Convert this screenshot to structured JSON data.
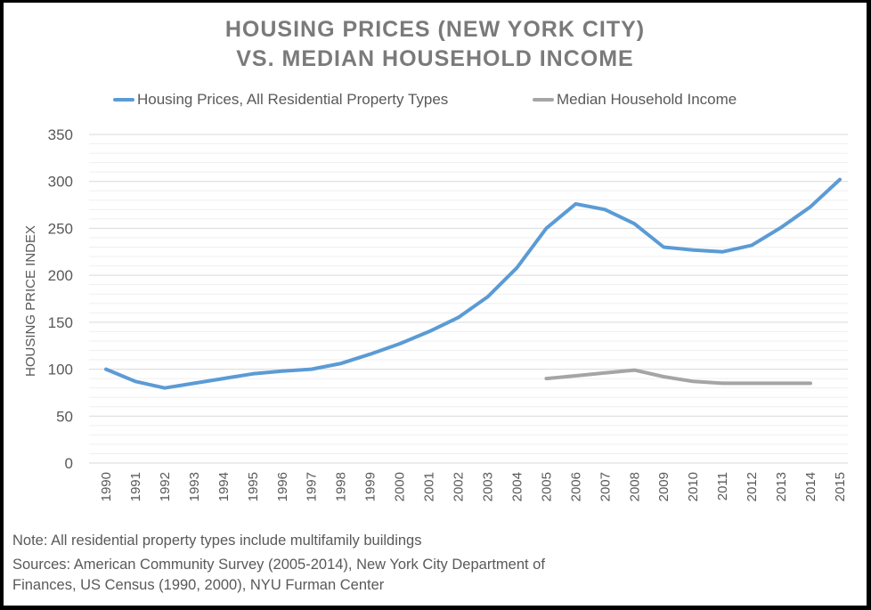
{
  "chart_data": {
    "type": "line",
    "title": "HOUSING PRICES (NEW YORK CITY) VS. MEDIAN HOUSEHOLD INCOME",
    "title_lines": [
      "HOUSING PRICES (NEW YORK CITY)",
      "VS. MEDIAN HOUSEHOLD INCOME"
    ],
    "xlabel": "",
    "ylabel": "HOUSING PRICE INDEX",
    "ylim": [
      0,
      350
    ],
    "yticks": [
      0,
      50,
      100,
      150,
      200,
      250,
      300,
      350
    ],
    "minor_grid_step": 10,
    "grid": true,
    "legend_position": "top",
    "x": [
      "1990",
      "1991",
      "1992",
      "1993",
      "1994",
      "1995",
      "1996",
      "1997",
      "1998",
      "1999",
      "2000",
      "2001",
      "2002",
      "2003",
      "2004",
      "2005",
      "2006",
      "2007",
      "2008",
      "2009",
      "2010",
      "2011",
      "2012",
      "2013",
      "2014",
      "2015"
    ],
    "series": [
      {
        "name": "Housing Prices, All Residential Property Types",
        "color": "#5b9bd5",
        "values": [
          100,
          87,
          80,
          85,
          90,
          95,
          98,
          100,
          106,
          116,
          127,
          140,
          155,
          177,
          208,
          250,
          276,
          270,
          255,
          230,
          227,
          225,
          232,
          251,
          273,
          302
        ]
      },
      {
        "name": "Median Household Income",
        "color": "#a5a5a5",
        "values": [
          null,
          null,
          null,
          null,
          null,
          null,
          null,
          null,
          null,
          null,
          null,
          null,
          null,
          null,
          null,
          90,
          93,
          96,
          99,
          92,
          87,
          85,
          85,
          85,
          85,
          null
        ]
      }
    ]
  },
  "notes": {
    "note": "Note: All residential property types include multifamily buildings",
    "sources_line1": "Sources: American Community Survey (2005-2014), New York City Department of",
    "sources_line2": "Finances, US Census (1990, 2000), NYU Furman Center"
  }
}
